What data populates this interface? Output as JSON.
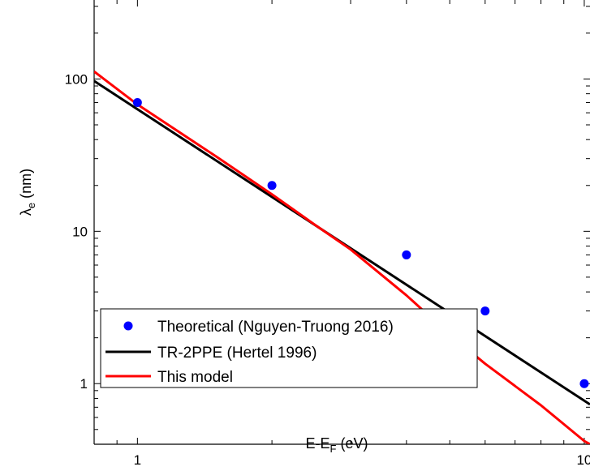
{
  "chart_data": {
    "type": "line",
    "xlabel": {
      "base": "E-E",
      "subscript": "F",
      "suffix": " (eV)"
    },
    "ylabel": {
      "base": "λ",
      "subscript": "e",
      "suffix": " (nm)"
    },
    "x_scale": "log",
    "y_scale": "log",
    "xlim": [
      0.8,
      10.3
    ],
    "ylim": [
      0.4,
      330
    ],
    "x_ticks": [
      1,
      10
    ],
    "x_tick_labels": [
      "1",
      "10"
    ],
    "y_ticks": [
      1,
      10,
      100
    ],
    "y_tick_labels": [
      "1",
      "10",
      "100"
    ],
    "grid": false,
    "legend_position": "bottom-left",
    "colors": {
      "points": "#0000ff",
      "hertel": "#000000",
      "model": "#ff0000"
    },
    "series": [
      {
        "name": "Theoretical (Nguyen-Truong 2016)",
        "kind": "scatter",
        "color": "#0000ff",
        "x": [
          1,
          2,
          4,
          6,
          10
        ],
        "y": [
          70,
          20,
          7,
          3,
          1
        ]
      },
      {
        "name": "TR-2PPE (Hertel 1996)",
        "kind": "line",
        "color": "#000000",
        "x": [
          0.8,
          10.3
        ],
        "y": [
          97,
          0.73
        ]
      },
      {
        "name": "This model",
        "kind": "line",
        "color": "#ff0000",
        "x": [
          0.8,
          1,
          1.5,
          2,
          2.5,
          3,
          4,
          5,
          6,
          8,
          10,
          10.3
        ],
        "y": [
          112,
          68,
          31,
          17.5,
          11,
          7.6,
          3.8,
          2.1,
          1.35,
          0.72,
          0.42,
          0.4
        ]
      }
    ]
  }
}
